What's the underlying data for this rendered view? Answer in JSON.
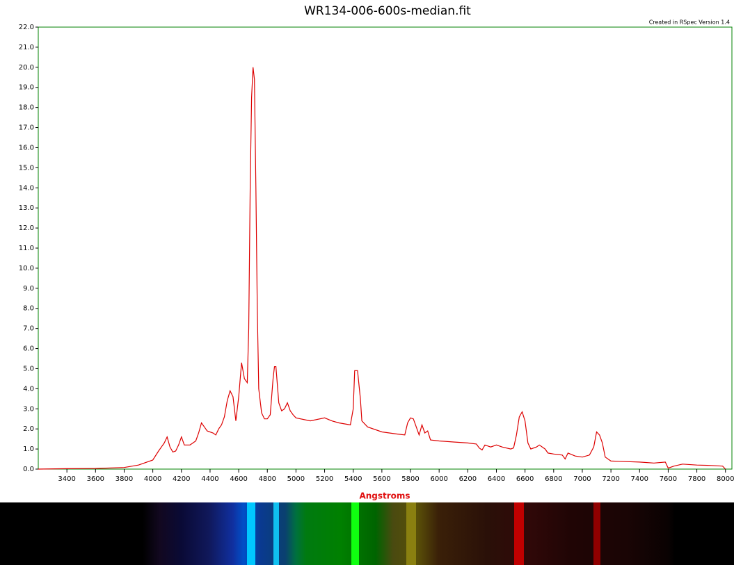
{
  "chart_data": {
    "type": "line",
    "title": "WR134-006-600s-median.fit",
    "subtitle": "Created in RSpec Version 1.4",
    "x_label": "Angstroms",
    "color": "#dd0000",
    "x": [
      3200,
      3400,
      3600,
      3800,
      3900,
      4000,
      4040,
      4060,
      4080,
      4100,
      4120,
      4140,
      4160,
      4180,
      4200,
      4220,
      4260,
      4300,
      4320,
      4340,
      4360,
      4380,
      4420,
      4440,
      4460,
      4480,
      4500,
      4520,
      4540,
      4560,
      4580,
      4600,
      4620,
      4640,
      4660,
      4670,
      4680,
      4690,
      4700,
      4710,
      4720,
      4730,
      4740,
      4760,
      4780,
      4800,
      4820,
      4840,
      4850,
      4860,
      4880,
      4900,
      4920,
      4940,
      4960,
      4980,
      5000,
      5100,
      5200,
      5250,
      5300,
      5380,
      5400,
      5410,
      5430,
      5450,
      5460,
      5500,
      5600,
      5700,
      5760,
      5780,
      5800,
      5820,
      5840,
      5860,
      5880,
      5900,
      5920,
      5940,
      6000,
      6100,
      6200,
      6260,
      6280,
      6300,
      6320,
      6360,
      6400,
      6440,
      6500,
      6520,
      6540,
      6560,
      6580,
      6600,
      6620,
      6640,
      6680,
      6700,
      6740,
      6760,
      6800,
      6860,
      6880,
      6900,
      6950,
      7000,
      7050,
      7080,
      7100,
      7120,
      7140,
      7160,
      7200,
      7400,
      7500,
      7580,
      7600,
      7640,
      7700,
      7800,
      7900,
      7980,
      8000
    ],
    "values": [
      0.0,
      0.02,
      0.03,
      0.08,
      0.2,
      0.45,
      0.9,
      1.1,
      1.3,
      1.6,
      1.1,
      0.85,
      0.9,
      1.2,
      1.6,
      1.2,
      1.2,
      1.4,
      1.8,
      2.3,
      2.1,
      1.9,
      1.8,
      1.7,
      2.0,
      2.2,
      2.6,
      3.4,
      3.9,
      3.6,
      2.4,
      3.6,
      5.3,
      4.5,
      4.3,
      7,
      14,
      18.5,
      20.0,
      19.4,
      14,
      8,
      4,
      2.8,
      2.5,
      2.5,
      2.7,
      4.5,
      5.1,
      5.1,
      3.3,
      2.9,
      3.0,
      3.3,
      2.9,
      2.7,
      2.55,
      2.4,
      2.55,
      2.4,
      2.3,
      2.2,
      3.0,
      4.9,
      4.9,
      3.5,
      2.4,
      2.1,
      1.85,
      1.75,
      1.7,
      2.3,
      2.55,
      2.5,
      2.1,
      1.7,
      2.2,
      1.8,
      1.9,
      1.45,
      1.4,
      1.35,
      1.3,
      1.25,
      1.05,
      0.95,
      1.2,
      1.1,
      1.2,
      1.1,
      1.0,
      1.05,
      1.7,
      2.6,
      2.85,
      2.4,
      1.3,
      1.0,
      1.1,
      1.2,
      1.0,
      0.8,
      0.75,
      0.7,
      0.5,
      0.8,
      0.65,
      0.6,
      0.7,
      1.1,
      1.85,
      1.7,
      1.3,
      0.6,
      0.4,
      0.35,
      0.3,
      0.35,
      0.05,
      0.15,
      0.25,
      0.2,
      0.18,
      0.15,
      0.0
    ],
    "xlim": [
      3200,
      8045
    ],
    "xticks": [
      3400,
      3600,
      3800,
      4000,
      4200,
      4400,
      4600,
      4800,
      5000,
      5200,
      5400,
      5600,
      5800,
      6000,
      6200,
      6400,
      6600,
      6800,
      7000,
      7200,
      7400,
      7600,
      7800,
      8000
    ],
    "ylim": [
      0,
      22
    ],
    "yticks": [
      {
        "value": 0,
        "label": "0.0"
      },
      {
        "value": 1,
        "label": "1.0"
      },
      {
        "value": 2,
        "label": "2.0"
      },
      {
        "value": 3,
        "label": "3.0"
      },
      {
        "value": 4,
        "label": "4.0"
      },
      {
        "value": 5,
        "label": "5.0"
      },
      {
        "value": 6,
        "label": "6.0"
      },
      {
        "value": 7,
        "label": "7.0"
      },
      {
        "value": 8,
        "label": "8.0"
      },
      {
        "value": 9,
        "label": "9.0"
      },
      {
        "value": 10,
        "label": "10.0"
      },
      {
        "value": 11,
        "label": "11.0"
      },
      {
        "value": 12,
        "label": "12.0"
      },
      {
        "value": 13,
        "label": "13.0"
      },
      {
        "value": 14,
        "label": "14.0"
      },
      {
        "value": 15,
        "label": "15.0"
      },
      {
        "value": 16,
        "label": "16.0"
      },
      {
        "value": 17,
        "label": "17.0"
      },
      {
        "value": 18,
        "label": "18.0"
      },
      {
        "value": 19,
        "label": "19.0"
      },
      {
        "value": 20,
        "label": "20.0"
      },
      {
        "value": 21,
        "label": "21.0"
      },
      {
        "value": 22,
        "label": "22.0"
      }
    ],
    "grid": false
  }
}
